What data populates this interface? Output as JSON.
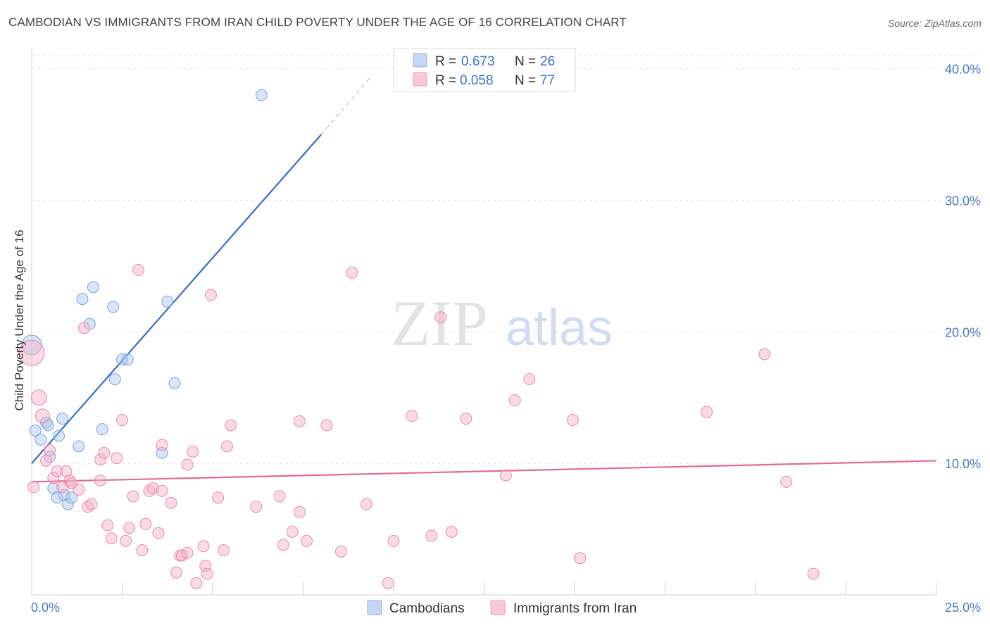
{
  "title": "CAMBODIAN VS IMMIGRANTS FROM IRAN CHILD POVERTY UNDER THE AGE OF 16 CORRELATION CHART",
  "source": "Source: ZipAtlas.com",
  "watermark": {
    "zip": "ZIP",
    "atlas": "atlas"
  },
  "chart_data": {
    "type": "scatter",
    "title": "CAMBODIAN VS IMMIGRANTS FROM IRAN CHILD POVERTY UNDER THE AGE OF 16 CORRELATION CHART",
    "ylabel": "Child Poverty Under the Age of 16",
    "xlabel": "",
    "xlim": [
      0,
      25
    ],
    "ylim": [
      0,
      41
    ],
    "x_tick_labels": [
      "0.0%",
      "25.0%"
    ],
    "y_tick_labels": [
      "10.0%",
      "20.0%",
      "30.0%",
      "40.0%"
    ],
    "y_ticks": [
      10,
      20,
      30,
      40
    ],
    "legend": [
      {
        "r_label": "R =",
        "r_value": "0.673",
        "n_label": "N =",
        "n_value": "26",
        "color": "#a8c4ee"
      },
      {
        "r_label": "R =",
        "r_value": "0.058",
        "n_label": "N =",
        "n_value": "77",
        "color": "#f4afc5"
      }
    ],
    "series": [
      {
        "name": "Cambodians",
        "color": "#a8c4ee",
        "stroke": "#7aa3e0",
        "line_color": "#2f6fd1",
        "trend": {
          "x0": 0,
          "y0": 10.0,
          "x1": 8.0,
          "y1": 35.0,
          "dash_to_x": 9.4,
          "dash_to_y": 39.5
        },
        "points": [
          [
            0.0,
            19.0
          ],
          [
            0.1,
            12.5
          ],
          [
            0.25,
            11.8
          ],
          [
            0.4,
            13.1
          ],
          [
            0.45,
            12.9
          ],
          [
            0.5,
            10.5
          ],
          [
            0.6,
            8.1
          ],
          [
            0.7,
            7.4
          ],
          [
            0.75,
            12.1
          ],
          [
            0.85,
            13.4
          ],
          [
            0.9,
            7.6
          ],
          [
            1.0,
            6.9
          ],
          [
            1.1,
            7.4
          ],
          [
            1.3,
            11.3
          ],
          [
            1.4,
            22.5
          ],
          [
            1.6,
            20.6
          ],
          [
            1.7,
            23.4
          ],
          [
            1.95,
            12.6
          ],
          [
            2.25,
            21.9
          ],
          [
            2.3,
            16.4
          ],
          [
            2.5,
            17.9
          ],
          [
            2.65,
            17.9
          ],
          [
            3.6,
            10.8
          ],
          [
            3.75,
            22.3
          ],
          [
            3.95,
            16.1
          ],
          [
            6.35,
            38.0
          ]
        ]
      },
      {
        "name": "Immigrants from Iran",
        "color": "#f4afc5",
        "stroke": "#e98aa8",
        "line_color": "#e26b94",
        "trend": {
          "x0": 0,
          "y0": 8.6,
          "x1": 25,
          "y1": 10.2
        },
        "points": [
          [
            0.0,
            18.4
          ],
          [
            0.2,
            15.0
          ],
          [
            0.3,
            13.6
          ],
          [
            0.4,
            10.2
          ],
          [
            0.5,
            11.0
          ],
          [
            0.6,
            8.9
          ],
          [
            0.7,
            9.4
          ],
          [
            0.85,
            8.2
          ],
          [
            0.95,
            9.4
          ],
          [
            1.05,
            8.7
          ],
          [
            1.1,
            8.5
          ],
          [
            1.3,
            8.0
          ],
          [
            1.45,
            20.3
          ],
          [
            1.55,
            6.7
          ],
          [
            1.65,
            6.9
          ],
          [
            1.9,
            10.3
          ],
          [
            1.9,
            8.7
          ],
          [
            2.0,
            10.8
          ],
          [
            2.1,
            5.3
          ],
          [
            2.2,
            4.3
          ],
          [
            2.35,
            10.4
          ],
          [
            2.5,
            13.3
          ],
          [
            2.6,
            4.1
          ],
          [
            2.7,
            5.1
          ],
          [
            2.8,
            7.5
          ],
          [
            2.95,
            24.7
          ],
          [
            3.05,
            3.4
          ],
          [
            3.15,
            5.4
          ],
          [
            3.25,
            7.9
          ],
          [
            3.35,
            8.1
          ],
          [
            3.5,
            4.7
          ],
          [
            3.6,
            7.9
          ],
          [
            3.6,
            11.4
          ],
          [
            3.85,
            7.0
          ],
          [
            4.0,
            1.7
          ],
          [
            4.1,
            3.0
          ],
          [
            4.15,
            3.0
          ],
          [
            4.3,
            3.2
          ],
          [
            4.3,
            9.9
          ],
          [
            4.45,
            10.9
          ],
          [
            4.55,
            0.9
          ],
          [
            4.75,
            3.7
          ],
          [
            4.8,
            2.2
          ],
          [
            4.85,
            1.6
          ],
          [
            4.95,
            22.8
          ],
          [
            5.15,
            7.4
          ],
          [
            5.3,
            3.4
          ],
          [
            5.4,
            11.3
          ],
          [
            5.5,
            12.9
          ],
          [
            6.2,
            6.7
          ],
          [
            6.85,
            7.5
          ],
          [
            6.95,
            3.8
          ],
          [
            7.2,
            4.8
          ],
          [
            7.4,
            6.3
          ],
          [
            7.4,
            13.2
          ],
          [
            7.6,
            4.1
          ],
          [
            8.15,
            12.9
          ],
          [
            8.55,
            3.3
          ],
          [
            8.85,
            24.5
          ],
          [
            9.25,
            6.9
          ],
          [
            9.85,
            0.9
          ],
          [
            10.0,
            4.1
          ],
          [
            10.5,
            13.6
          ],
          [
            11.05,
            4.5
          ],
          [
            11.3,
            21.1
          ],
          [
            11.6,
            4.8
          ],
          [
            12.0,
            13.4
          ],
          [
            13.1,
            9.1
          ],
          [
            13.35,
            14.8
          ],
          [
            13.75,
            16.4
          ],
          [
            14.95,
            13.3
          ],
          [
            15.15,
            2.8
          ],
          [
            18.65,
            13.9
          ],
          [
            20.25,
            18.3
          ],
          [
            20.85,
            8.6
          ],
          [
            21.6,
            1.6
          ],
          [
            0.05,
            8.2
          ]
        ]
      }
    ]
  }
}
